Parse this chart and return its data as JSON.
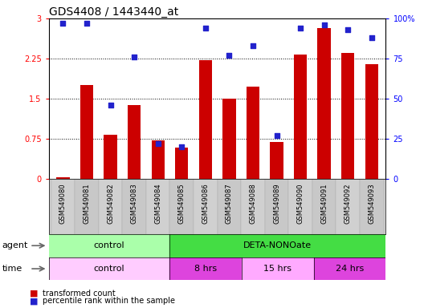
{
  "title": "GDS4408 / 1443440_at",
  "samples": [
    "GSM549080",
    "GSM549081",
    "GSM549082",
    "GSM549083",
    "GSM549084",
    "GSM549085",
    "GSM549086",
    "GSM549087",
    "GSM549088",
    "GSM549089",
    "GSM549090",
    "GSM549091",
    "GSM549092",
    "GSM549093"
  ],
  "red_values": [
    0.03,
    1.75,
    0.82,
    1.38,
    0.72,
    0.58,
    2.22,
    1.5,
    1.72,
    0.68,
    2.32,
    2.82,
    2.35,
    2.15
  ],
  "blue_values": [
    97,
    97,
    46,
    76,
    22,
    20,
    94,
    77,
    83,
    27,
    94,
    96,
    93,
    88
  ],
  "ylim_left": [
    0,
    3
  ],
  "ylim_right": [
    0,
    100
  ],
  "yticks_left": [
    0,
    0.75,
    1.5,
    2.25,
    3
  ],
  "yticks_right": [
    0,
    25,
    50,
    75,
    100
  ],
  "ytick_labels_left": [
    "0",
    "0.75",
    "1.5",
    "2.25",
    "3"
  ],
  "ytick_labels_right": [
    "0",
    "25",
    "50",
    "75",
    "100%"
  ],
  "bar_color": "#cc0000",
  "dot_color": "#2222cc",
  "background_color": "#ffffff",
  "agent_control_label": "control",
  "agent_treatment_label": "DETA-NONOate",
  "time_control_label": "control",
  "time_8hr_label": "8 hrs",
  "time_15hr_label": "15 hrs",
  "time_24hr_label": "24 hrs",
  "agent_row_color_control": "#aaffaa",
  "agent_row_color_treatment": "#44dd44",
  "time_row_color_control": "#ffccff",
  "time_row_color_8hr": "#dd44dd",
  "time_row_color_15hr": "#ffaaff",
  "time_row_color_24hr": "#dd44dd",
  "label_bg_color": "#cccccc",
  "legend_red_label": "transformed count",
  "legend_blue_label": "percentile rank within the sample",
  "title_fontsize": 10,
  "tick_fontsize": 7,
  "sample_fontsize": 6,
  "row_fontsize": 8,
  "legend_fontsize": 7,
  "n_control": 5,
  "n_8hr": 3,
  "n_15hr": 3,
  "n_24hr": 3
}
